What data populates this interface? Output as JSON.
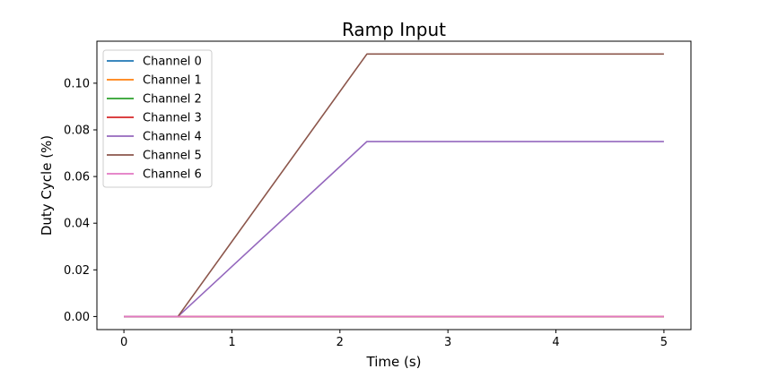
{
  "chart_data": {
    "type": "line",
    "title": "Ramp Input",
    "xlabel": "Time (s)",
    "ylabel": "Duty Cycle (%)",
    "xlim": [
      -0.25,
      5.25
    ],
    "ylim": [
      -0.0056,
      0.118
    ],
    "xticks": [
      0,
      1,
      2,
      3,
      4,
      5
    ],
    "yticks": [
      0.0,
      0.02,
      0.04,
      0.06,
      0.08,
      0.1
    ],
    "xtick_labels": [
      "0",
      "1",
      "2",
      "3",
      "4",
      "5"
    ],
    "ytick_labels": [
      "0.00",
      "0.02",
      "0.04",
      "0.06",
      "0.08",
      "0.10"
    ],
    "grid": false,
    "legend_position": "top-left",
    "series": [
      {
        "name": "Channel 0",
        "color": "#1f77b4",
        "x": [
          0,
          0.5,
          5
        ],
        "y": [
          0,
          0,
          0
        ]
      },
      {
        "name": "Channel 1",
        "color": "#ff7f0e",
        "x": [
          0,
          0.5,
          5
        ],
        "y": [
          0,
          0,
          0
        ]
      },
      {
        "name": "Channel 2",
        "color": "#2ca02c",
        "x": [
          0,
          0.5,
          5
        ],
        "y": [
          0,
          0,
          0
        ]
      },
      {
        "name": "Channel 3",
        "color": "#d62728",
        "x": [
          0,
          0.5,
          5
        ],
        "y": [
          0,
          0,
          0
        ]
      },
      {
        "name": "Channel 4",
        "color": "#9467bd",
        "x": [
          0,
          0.5,
          2.25,
          5
        ],
        "y": [
          0,
          0,
          0.075,
          0.075
        ]
      },
      {
        "name": "Channel 5",
        "color": "#8c564b",
        "x": [
          0,
          0.5,
          2.25,
          5
        ],
        "y": [
          0,
          0,
          0.1125,
          0.1125
        ]
      },
      {
        "name": "Channel 6",
        "color": "#e377c2",
        "x": [
          0,
          0.5,
          5
        ],
        "y": [
          0,
          0,
          0
        ]
      }
    ]
  }
}
